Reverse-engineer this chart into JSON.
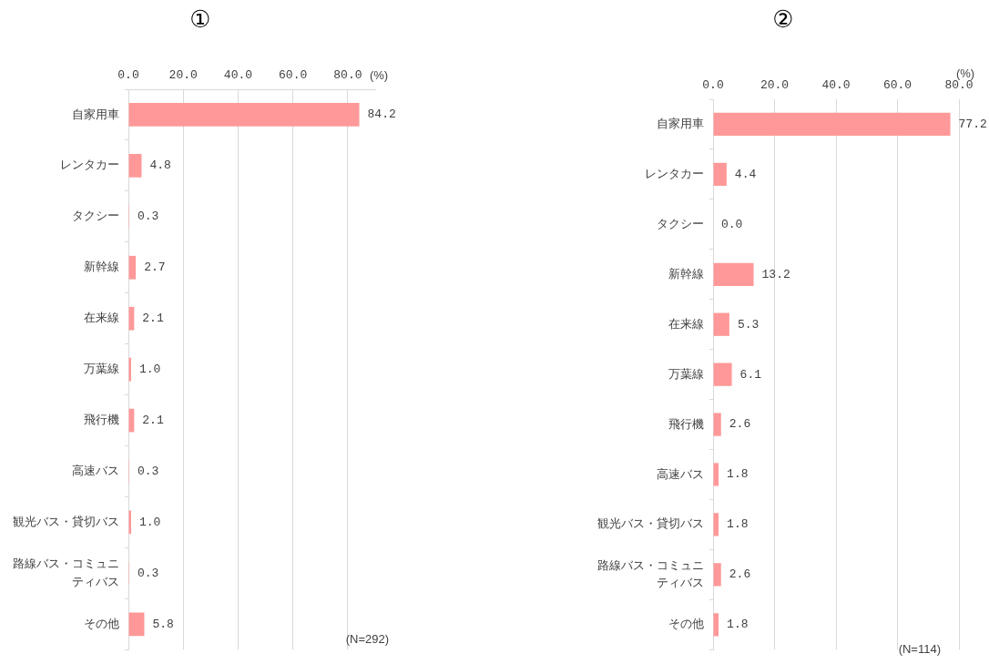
{
  "chart_data": [
    {
      "type": "bar",
      "orientation": "horizontal",
      "title": "①",
      "xlabel": "(%)",
      "categories": [
        "自家用車",
        "レンタカー",
        "タクシー",
        "新幹線",
        "在来線",
        "万葉線",
        "飛行機",
        "高速バス",
        "観光バス・貸切バス",
        "路線バス・コミュニティバス",
        "その他"
      ],
      "values": [
        84.2,
        4.8,
        0.3,
        2.7,
        2.1,
        1.0,
        2.1,
        0.3,
        1.0,
        0.3,
        5.8
      ],
      "value_labels": [
        "84.2",
        "4.8",
        "0.3",
        "2.7",
        "2.1",
        "1.0",
        "2.1",
        "0.3",
        "1.0",
        "0.3",
        "5.8"
      ],
      "color": "#ff9999",
      "xlim": [
        0,
        90
      ],
      "xticks": [
        {
          "value": 0,
          "label": "0.0"
        },
        {
          "value": 20,
          "label": "20.0"
        },
        {
          "value": 40,
          "label": "40.0"
        },
        {
          "value": 60,
          "label": "60.0"
        },
        {
          "value": 80,
          "label": "80.0"
        }
      ],
      "grid": "x",
      "annotations": [
        "(N=292)"
      ]
    },
    {
      "type": "bar",
      "orientation": "horizontal",
      "title": "②",
      "xlabel": "(%)",
      "categories": [
        "自家用車",
        "レンタカー",
        "タクシー",
        "新幹線",
        "在来線",
        "万葉線",
        "飛行機",
        "高速バス",
        "観光バス・貸切バス",
        "路線バス・コミュニティバス",
        "その他"
      ],
      "values": [
        77.2,
        4.4,
        0.0,
        13.2,
        5.3,
        6.1,
        2.6,
        1.8,
        1.8,
        2.6,
        1.8
      ],
      "value_labels": [
        "77.2",
        "4.4",
        "0.0",
        "13.2",
        "5.3",
        "6.1",
        "2.6",
        "1.8",
        "1.8",
        "2.6",
        "1.8"
      ],
      "color": "#ff9999",
      "xlim": [
        0,
        80
      ],
      "xticks": [
        {
          "value": 0,
          "label": "0.0"
        },
        {
          "value": 20,
          "label": "20.0"
        },
        {
          "value": 40,
          "label": "40.0"
        },
        {
          "value": 60,
          "label": "60.0"
        },
        {
          "value": 80,
          "label": "80.0"
        }
      ],
      "grid": "x",
      "annotations": [
        "(N=114)"
      ]
    }
  ]
}
